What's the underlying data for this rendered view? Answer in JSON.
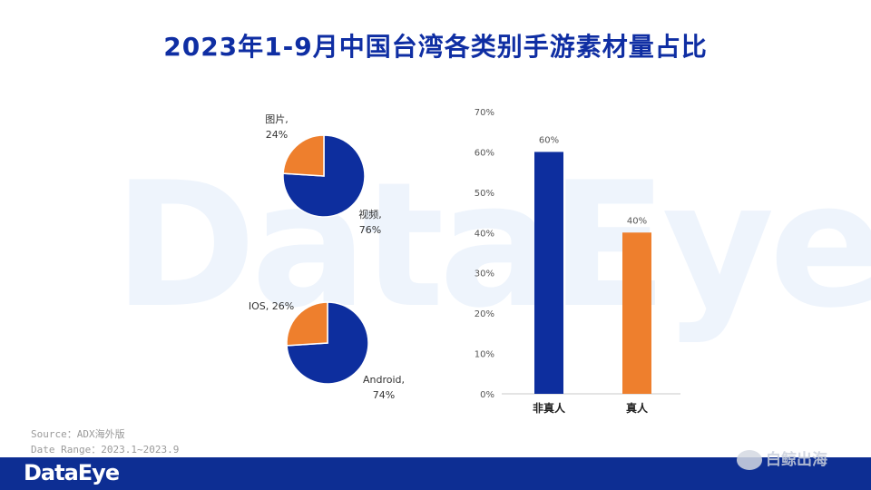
{
  "title": "2023年1-9月中国台湾各类别手游素材量占比",
  "watermark": "DataEye",
  "source_line": "Source：ADX海外版",
  "date_line": "Date Range：2023.1~2023.9",
  "footer_logo": "DataEye",
  "corner_mark": "白鲸出海",
  "colors": {
    "blue": "#0d2e9e",
    "orange": "#ee7f2d",
    "title": "#0f2ea3"
  },
  "chart_data": [
    {
      "type": "pie",
      "slices": [
        {
          "label_line1": "视频,",
          "label_line2": "76%",
          "value": 76,
          "color": "#0d2e9e"
        },
        {
          "label_line1": "图片,",
          "label_line2": "24%",
          "value": 24,
          "color": "#ee7f2d"
        }
      ]
    },
    {
      "type": "pie",
      "slices": [
        {
          "label_line1": "Android,",
          "label_line2": "74%",
          "value": 74,
          "color": "#0d2e9e"
        },
        {
          "label_line1": "IOS, 26%",
          "label_line2": "",
          "value": 26,
          "color": "#ee7f2d"
        }
      ]
    },
    {
      "type": "bar",
      "categories": [
        "非真人",
        "真人"
      ],
      "values": [
        60,
        40
      ],
      "data_labels": [
        "60%",
        "40%"
      ],
      "colors": [
        "#0d2e9e",
        "#ee7f2d"
      ],
      "ylim": [
        0,
        70
      ],
      "yticks": [
        "0%",
        "10%",
        "20%",
        "30%",
        "40%",
        "50%",
        "60%",
        "70%"
      ],
      "grid": false
    }
  ]
}
